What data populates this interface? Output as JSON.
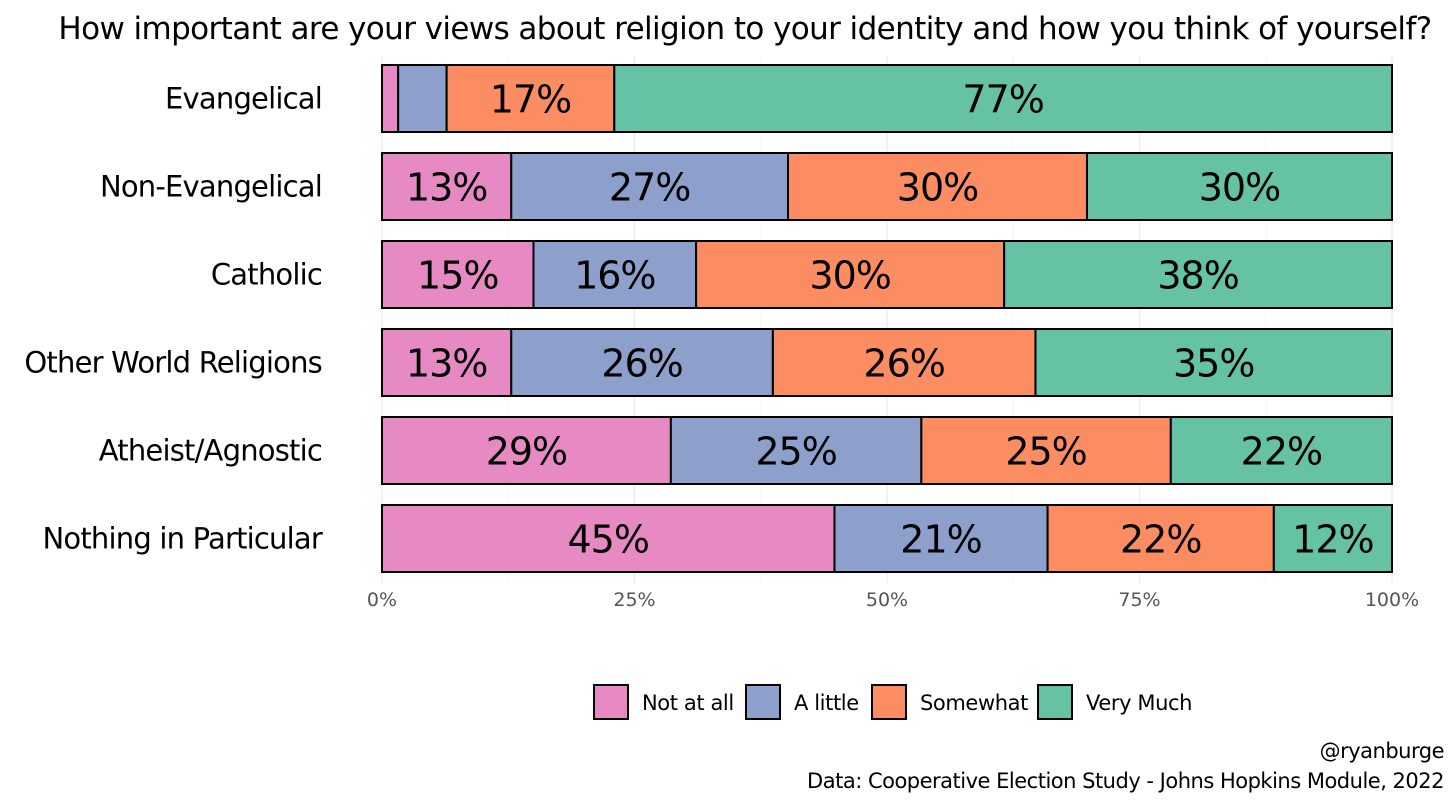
{
  "chart_data": {
    "type": "bar",
    "orientation": "horizontal",
    "stacked": true,
    "title": "How important are your views about religion to your identity and how you think of yourself?",
    "categories": [
      "Evangelical",
      "Non-Evangelical",
      "Catholic",
      "Other World Religions",
      "Atheist/Agnostic",
      "Nothing in Particular"
    ],
    "series": [
      {
        "name": "Not at all",
        "color": "#E78AC3",
        "values": [
          1.6,
          12.8,
          15.0,
          12.8,
          28.6,
          44.8
        ],
        "labels": [
          "",
          "13%",
          "15%",
          "13%",
          "29%",
          "45%"
        ]
      },
      {
        "name": "A little",
        "color": "#8DA0CB",
        "values": [
          4.8,
          27.4,
          16.1,
          25.9,
          24.8,
          21.1
        ],
        "labels": [
          "",
          "27%",
          "16%",
          "26%",
          "25%",
          "21%"
        ]
      },
      {
        "name": "Somewhat",
        "color": "#FC8D62",
        "values": [
          16.6,
          29.6,
          30.5,
          26.0,
          24.7,
          22.4
        ],
        "labels": [
          "17%",
          "30%",
          "30%",
          "26%",
          "25%",
          "22%"
        ]
      },
      {
        "name": "Very Much",
        "color": "#66C2A5",
        "values": [
          77.0,
          30.2,
          38.4,
          35.3,
          21.9,
          11.7
        ],
        "labels": [
          "77%",
          "30%",
          "38%",
          "35%",
          "22%",
          "12%"
        ]
      }
    ],
    "xlim": [
      0,
      100
    ],
    "xticks": [
      0,
      25,
      50,
      75,
      100
    ],
    "xtick_labels": [
      "0%",
      "25%",
      "50%",
      "75%",
      "100%"
    ],
    "grid": true,
    "legend_position": "bottom",
    "caption_lines": [
      "@ryanburge",
      "Data: Cooperative Election Study - Johns Hopkins Module, 2022"
    ]
  }
}
